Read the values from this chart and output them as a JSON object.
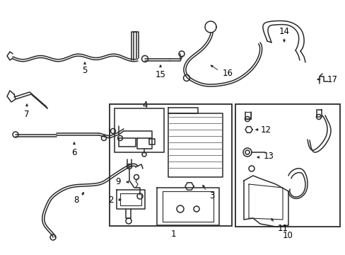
{
  "background_color": "#ffffff",
  "line_color": "#2a2a2a",
  "box_color": "#2a2a2a",
  "label_fontsize": 8.5,
  "label_color": "#000000",
  "figsize": [
    4.89,
    3.6
  ],
  "dpi": 100
}
